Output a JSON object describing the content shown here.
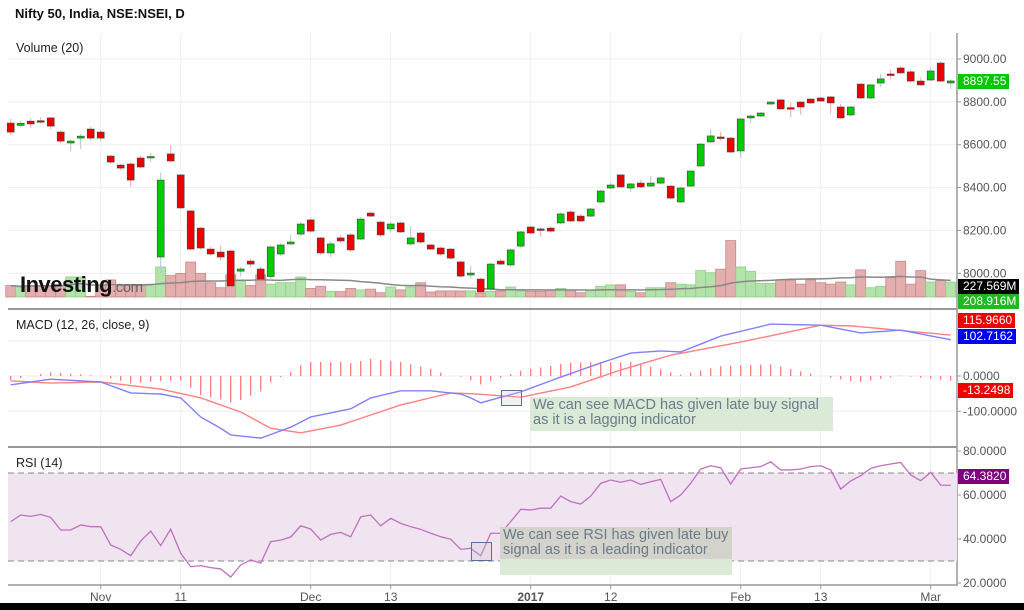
{
  "header": {
    "title": "Nifty 50, India, NSE:NSEI, D"
  },
  "panes": {
    "volume_label": "Volume (20)",
    "macd_label": "MACD (12, 26, close, 9)",
    "rsi_label": "RSI (14)"
  },
  "logo": {
    "text": "Investing",
    "suffix": ".com"
  },
  "annotations": {
    "macd_note": "We can see MACD has given late buy signal as it is a lagging indicator",
    "rsi_note": "We can see RSI has given late buy signal as it is a leading indicator"
  },
  "badges": {
    "last_price": "8897.55",
    "volume_ma": "227.569M",
    "volume": "208.916M",
    "macd_signal": "115.9660",
    "macd": "102.7162",
    "macd_hist": "-13.2498",
    "rsi": "64.3820"
  },
  "colors": {
    "up": "#00cc00",
    "down": "#ee0000",
    "vol_up": "#b3e2aa",
    "vol_down": "#e2aeae",
    "macd": "#8080ff",
    "signal": "#ff8080",
    "rsi": "#c070c0",
    "rsi_band": "#f0e4f0",
    "price_badge": "#00c800",
    "rsi_badge": "#800080"
  },
  "chart_data": {
    "type": "candlestick",
    "price_axis": {
      "ticks": [
        "9000.00",
        "8800.00",
        "8600.00",
        "8400.00",
        "8200.00",
        "8000.00"
      ],
      "ylim": [
        7880,
        9120
      ]
    },
    "macd_axis": {
      "ticks": [
        "0.0000",
        "-100.0000"
      ]
    },
    "rsi_axis": {
      "ticks": [
        "80.0000",
        "60.0000",
        "40.0000",
        "20.0000"
      ],
      "levels": [
        30,
        70
      ]
    },
    "x_ticks": [
      {
        "date": "2016-11-01",
        "label": "Nov"
      },
      {
        "date": "2016-11-11",
        "label": "11"
      },
      {
        "date": "2016-12-01",
        "label": "Dec"
      },
      {
        "date": "2016-12-13",
        "label": "13"
      },
      {
        "date": "2017-01-02",
        "label": "2017"
      },
      {
        "date": "2017-01-12",
        "label": "12"
      },
      {
        "date": "2017-02-01",
        "label": "Feb"
      },
      {
        "date": "2017-02-13",
        "label": "13"
      },
      {
        "date": "2017-03-01",
        "label": "Mar"
      }
    ],
    "candle_fields": [
      "date",
      "open",
      "high",
      "low",
      "close",
      "volume_M"
    ],
    "candles": [
      [
        "2016-10-20",
        8701,
        8720,
        8645,
        8659,
        160
      ],
      [
        "2016-10-21",
        8690,
        8712,
        8680,
        8700,
        140
      ],
      [
        "2016-10-24",
        8710,
        8722,
        8680,
        8697,
        160
      ],
      [
        "2016-10-25",
        8712,
        8730,
        8700,
        8711,
        160
      ],
      [
        "2016-10-26",
        8725,
        8730,
        8672,
        8687,
        160
      ],
      [
        "2016-10-27",
        8659,
        8668,
        8605,
        8617,
        160
      ],
      [
        "2016-10-28",
        8608,
        8625,
        8570,
        8617,
        280
      ],
      [
        "2016-10-30",
        8631,
        8650,
        8580,
        8640,
        280
      ],
      [
        "2016-10-31",
        8673,
        8685,
        8620,
        8631,
        10
      ],
      [
        "2016-11-01",
        8659,
        8670,
        8618,
        8631,
        160
      ],
      [
        "2016-11-02",
        8547,
        8552,
        8510,
        8519,
        240
      ],
      [
        "2016-11-03",
        8505,
        8510,
        8480,
        8491,
        160
      ],
      [
        "2016-11-04",
        8510,
        8518,
        8405,
        8435,
        160
      ],
      [
        "2016-11-07",
        8538,
        8550,
        8490,
        8496,
        160
      ],
      [
        "2016-11-08",
        8542,
        8562,
        8520,
        8545,
        180
      ],
      [
        "2016-11-09",
        8076,
        8470,
        8002,
        8435,
        420
      ],
      [
        "2016-11-10",
        8557,
        8598,
        8518,
        8524,
        300
      ],
      [
        "2016-11-11",
        8459,
        8462,
        8300,
        8305,
        330
      ],
      [
        "2016-11-15",
        8291,
        8295,
        8108,
        8113,
        490
      ],
      [
        "2016-11-16",
        8211,
        8215,
        8110,
        8118,
        330
      ],
      [
        "2016-11-17",
        8113,
        8125,
        8080,
        8090,
        200
      ],
      [
        "2016-11-18",
        8099,
        8130,
        8060,
        8076,
        130
      ],
      [
        "2016-11-21",
        8104,
        8108,
        7935,
        7941,
        310
      ],
      [
        "2016-11-22",
        8010,
        8030,
        7985,
        8020,
        230
      ],
      [
        "2016-11-23",
        8057,
        8068,
        8030,
        8043,
        160
      ],
      [
        "2016-11-24",
        8020,
        8030,
        7968,
        7973,
        310
      ],
      [
        "2016-11-25",
        7985,
        8128,
        7965,
        8123,
        180
      ],
      [
        "2016-11-28",
        8090,
        8140,
        8080,
        8132,
        200
      ],
      [
        "2016-11-29",
        8137,
        8180,
        8130,
        8146,
        200
      ],
      [
        "2016-11-30",
        8183,
        8240,
        8175,
        8230,
        280
      ],
      [
        "2016-12-01",
        8249,
        8260,
        8190,
        8197,
        120
      ],
      [
        "2016-12-02",
        8165,
        8170,
        8085,
        8095,
        150
      ],
      [
        "2016-12-05",
        8095,
        8150,
        8075,
        8137,
        80
      ],
      [
        "2016-12-06",
        8165,
        8180,
        8140,
        8151,
        75
      ],
      [
        "2016-12-07",
        8179,
        8188,
        8100,
        8109,
        120
      ],
      [
        "2016-12-08",
        8160,
        8260,
        8155,
        8253,
        100
      ],
      [
        "2016-12-09",
        8281,
        8288,
        8262,
        8267,
        110
      ],
      [
        "2016-12-12",
        8239,
        8245,
        8170,
        8179,
        60
      ],
      [
        "2016-12-13",
        8207,
        8240,
        8190,
        8230,
        140
      ],
      [
        "2016-12-14",
        8235,
        8240,
        8188,
        8193,
        100
      ],
      [
        "2016-12-15",
        8137,
        8220,
        8130,
        8165,
        140
      ],
      [
        "2016-12-16",
        8188,
        8192,
        8140,
        8146,
        200
      ],
      [
        "2016-12-19",
        8132,
        8138,
        8108,
        8113,
        70
      ],
      [
        "2016-12-20",
        8118,
        8125,
        8080,
        8090,
        85
      ],
      [
        "2016-12-21",
        8113,
        8118,
        8063,
        8071,
        85
      ],
      [
        "2016-12-22",
        8053,
        8058,
        7980,
        7987,
        85
      ],
      [
        "2016-12-23",
        7992,
        8035,
        7975,
        8001,
        85
      ],
      [
        "2016-12-26",
        7973,
        7980,
        7905,
        7913,
        55
      ],
      [
        "2016-12-27",
        7927,
        8050,
        7915,
        8043,
        80
      ],
      [
        "2016-12-28",
        8057,
        8070,
        8038,
        8043,
        85
      ],
      [
        "2016-12-29",
        8039,
        8115,
        8030,
        8109,
        140
      ],
      [
        "2016-12-30",
        8127,
        8198,
        8120,
        8193,
        85
      ],
      [
        "2017-01-02",
        8216,
        8222,
        8180,
        8188,
        80
      ],
      [
        "2017-01-03",
        8207,
        8215,
        8170,
        8205,
        80
      ],
      [
        "2017-01-04",
        8211,
        8218,
        8190,
        8197,
        100
      ],
      [
        "2017-01-05",
        8235,
        8285,
        8228,
        8277,
        120
      ],
      [
        "2017-01-06",
        8286,
        8295,
        8238,
        8244,
        100
      ],
      [
        "2017-01-09",
        8267,
        8275,
        8240,
        8244,
        60
      ],
      [
        "2017-01-10",
        8267,
        8305,
        8262,
        8300,
        100
      ],
      [
        "2017-01-11",
        8333,
        8390,
        8328,
        8384,
        150
      ],
      [
        "2017-01-12",
        8398,
        8420,
        8393,
        8412,
        170
      ],
      [
        "2017-01-13",
        8459,
        8462,
        8398,
        8403,
        170
      ],
      [
        "2017-01-16",
        8398,
        8422,
        8380,
        8417,
        80
      ],
      [
        "2017-01-17",
        8421,
        8435,
        8398,
        8403,
        60
      ],
      [
        "2017-01-18",
        8407,
        8455,
        8402,
        8421,
        130
      ],
      [
        "2017-01-19",
        8421,
        8450,
        8416,
        8445,
        130
      ],
      [
        "2017-01-20",
        8407,
        8412,
        8345,
        8351,
        200
      ],
      [
        "2017-01-23",
        8333,
        8402,
        8328,
        8398,
        180
      ],
      [
        "2017-01-24",
        8407,
        8480,
        8402,
        8477,
        170
      ],
      [
        "2017-01-25",
        8501,
        8608,
        8496,
        8603,
        370
      ],
      [
        "2017-01-27",
        8613,
        8672,
        8608,
        8641,
        340
      ],
      [
        "2017-01-30",
        8636,
        8660,
        8620,
        8631,
        390
      ],
      [
        "2017-01-31",
        8631,
        8636,
        8560,
        8566,
        790
      ],
      [
        "2017-02-01",
        8571,
        8725,
        8538,
        8720,
        420
      ],
      [
        "2017-02-02",
        8725,
        8740,
        8700,
        8734,
        360
      ],
      [
        "2017-02-03",
        8734,
        8752,
        8729,
        8748,
        190
      ],
      [
        "2017-02-06",
        8790,
        8804,
        8785,
        8799,
        190
      ],
      [
        "2017-02-07",
        8809,
        8813,
        8762,
        8767,
        240
      ],
      [
        "2017-02-08",
        8773,
        8798,
        8728,
        8771,
        230
      ],
      [
        "2017-02-09",
        8799,
        8803,
        8740,
        8776,
        180
      ],
      [
        "2017-02-10",
        8813,
        8818,
        8790,
        8795,
        240
      ],
      [
        "2017-02-13",
        8818,
        8823,
        8799,
        8804,
        200
      ],
      [
        "2017-02-14",
        8823,
        8828,
        8745,
        8795,
        180
      ],
      [
        "2017-02-15",
        8776,
        8790,
        8720,
        8725,
        210
      ],
      [
        "2017-02-16",
        8739,
        8781,
        8730,
        8776,
        170
      ],
      [
        "2017-02-17",
        8883,
        8888,
        8813,
        8818,
        380
      ],
      [
        "2017-02-20",
        8818,
        8884,
        8813,
        8879,
        130
      ],
      [
        "2017-02-21",
        8888,
        8930,
        8870,
        8907,
        150
      ],
      [
        "2017-02-22",
        8930,
        8950,
        8905,
        8926,
        270
      ],
      [
        "2017-02-23",
        8958,
        8968,
        8930,
        8935,
        500
      ],
      [
        "2017-02-27",
        8940,
        8950,
        8892,
        8897,
        180
      ],
      [
        "2017-02-28",
        8897,
        8915,
        8874,
        8879,
        370
      ],
      [
        "2017-03-01",
        8902,
        8962,
        8897,
        8944,
        210
      ],
      [
        "2017-03-02",
        8981,
        8990,
        8892,
        8897,
        230
      ],
      [
        "2017-03-03",
        8888,
        8905,
        8860,
        8897.55,
        208.916
      ]
    ],
    "macd": [
      [
        "2016-10-20",
        -25
      ],
      [
        "2016-10-26",
        -9
      ],
      [
        "2016-11-01",
        -17
      ],
      [
        "2016-11-04",
        -48
      ],
      [
        "2016-11-09",
        -51
      ],
      [
        "2016-11-11",
        -62
      ],
      [
        "2016-11-16",
        -116
      ],
      [
        "2016-11-18",
        -148
      ],
      [
        "2016-11-21",
        -167
      ],
      [
        "2016-11-24",
        -176
      ],
      [
        "2016-11-29",
        -145
      ],
      [
        "2016-12-01",
        -116
      ],
      [
        "2016-12-07",
        -93
      ],
      [
        "2016-12-09",
        -62
      ],
      [
        "2016-12-14",
        -42
      ],
      [
        "2016-12-19",
        -42
      ],
      [
        "2016-12-22",
        -51
      ],
      [
        "2016-12-23",
        -62
      ],
      [
        "2016-12-26",
        -76
      ],
      [
        "2016-12-30",
        -45
      ],
      [
        "2017-01-05",
        -3
      ],
      [
        "2017-01-11",
        37
      ],
      [
        "2017-01-16",
        65
      ],
      [
        "2017-01-19",
        71
      ],
      [
        "2017-01-23",
        68
      ],
      [
        "2017-01-30",
        113
      ],
      [
        "2017-02-06",
        147
      ],
      [
        "2017-02-13",
        144
      ],
      [
        "2017-02-17",
        122
      ],
      [
        "2017-02-23",
        130
      ],
      [
        "2017-03-03",
        102.7162
      ]
    ],
    "signal": [
      [
        "2016-10-20",
        -14
      ],
      [
        "2016-10-26",
        -20
      ],
      [
        "2016-11-01",
        -17
      ],
      [
        "2016-11-09",
        -37
      ],
      [
        "2016-11-16",
        -62
      ],
      [
        "2016-11-22",
        -102
      ],
      [
        "2016-11-25",
        -148
      ],
      [
        "2016-11-30",
        -161
      ],
      [
        "2016-12-06",
        -139
      ],
      [
        "2016-12-14",
        -82
      ],
      [
        "2016-12-21",
        -48
      ],
      [
        "2016-12-23",
        -50
      ],
      [
        "2016-12-30",
        -60
      ],
      [
        "2017-01-06",
        -31
      ],
      [
        "2017-01-13",
        17
      ],
      [
        "2017-01-20",
        59
      ],
      [
        "2017-02-01",
        96
      ],
      [
        "2017-02-13",
        144
      ],
      [
        "2017-02-16",
        142
      ],
      [
        "2017-03-03",
        115.966
      ]
    ],
    "rsi": [
      47.9,
      50.9,
      50.3,
      51.2,
      49.8,
      44.1,
      44.1,
      46.4,
      45.6,
      45.6,
      37.3,
      35.3,
      32.4,
      39.1,
      43.6,
      37,
      44.5,
      33.5,
      27.4,
      27.9,
      27,
      26.4,
      22.7,
      28.2,
      30.5,
      29,
      38.8,
      39.5,
      40.9,
      46,
      44.5,
      39.5,
      42.1,
      43,
      41,
      50.1,
      50.9,
      46,
      49.4,
      47.1,
      45.6,
      44.4,
      42.6,
      41,
      39.9,
      35.3,
      35.8,
      32.4,
      42.6,
      42.6,
      47.9,
      53.5,
      53.2,
      54,
      54,
      59.5,
      57,
      55.9,
      59.5,
      65.3,
      66.8,
      65.8,
      66.8,
      64.8,
      66,
      67.1,
      57,
      60,
      65.3,
      71.8,
      73.3,
      72.4,
      65,
      71.8,
      72.4,
      72.9,
      75.1,
      71.4,
      71.4,
      71.8,
      72.9,
      73.3,
      71.4,
      62.7,
      66.4,
      68.8,
      72.1,
      73.3,
      74.1,
      74.8,
      69.1,
      66.5,
      70.3,
      64.5,
      64.382
    ]
  }
}
